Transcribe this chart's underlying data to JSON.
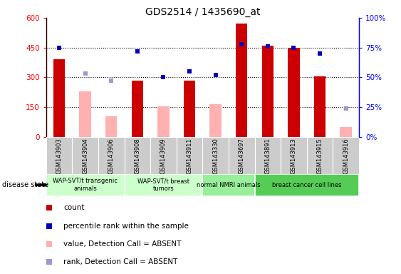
{
  "title": "GDS2514 / 1435690_at",
  "samples": [
    "GSM143903",
    "GSM143904",
    "GSM143906",
    "GSM143908",
    "GSM143909",
    "GSM143911",
    "GSM143330",
    "GSM143697",
    "GSM143891",
    "GSM143913",
    "GSM143915",
    "GSM143916"
  ],
  "red_bars": {
    "GSM143903": 390,
    "GSM143908": 285,
    "GSM143911": 283,
    "GSM143697": 570,
    "GSM143891": 460,
    "GSM143913": 450,
    "GSM143915": 305
  },
  "pink_bars": {
    "GSM143904": 230,
    "GSM143906": 105,
    "GSM143909": 155,
    "GSM143330": 165,
    "GSM143916": 50
  },
  "blue_squares": {
    "GSM143903": 75,
    "GSM143908": 72,
    "GSM143909": 50,
    "GSM143911": 55,
    "GSM143330": 52,
    "GSM143697": 78,
    "GSM143891": 76,
    "GSM143913": 75,
    "GSM143915": 70
  },
  "blue_squares_absent": {
    "GSM143904": 53,
    "GSM143906": 47,
    "GSM143916": 24
  },
  "groups": [
    {
      "label": "WAP-SVT/t transgenic\nanimals",
      "samples": [
        "GSM143903",
        "GSM143904",
        "GSM143906"
      ],
      "color": "#ccffcc"
    },
    {
      "label": "WAP-SVT/t breast\ntumors",
      "samples": [
        "GSM143908",
        "GSM143909",
        "GSM143911"
      ],
      "color": "#ccffcc"
    },
    {
      "label": "normal NMRI animals",
      "samples": [
        "GSM143330",
        "GSM143697"
      ],
      "color": "#99ee99"
    },
    {
      "label": "breast cancer cell lines",
      "samples": [
        "GSM143891",
        "GSM143913",
        "GSM143915",
        "GSM143916"
      ],
      "color": "#66dd66"
    }
  ],
  "ylim_left": [
    0,
    600
  ],
  "ylim_right": [
    0,
    100
  ],
  "yticks_left": [
    0,
    150,
    300,
    450,
    600
  ],
  "ytick_labels_left": [
    "0",
    "150",
    "300",
    "450",
    "600"
  ],
  "yticks_right": [
    0,
    25,
    50,
    75,
    100
  ],
  "ytick_labels_right": [
    "0%",
    "25%",
    "50%",
    "75%",
    "100%"
  ],
  "hgrid_vals": [
    150,
    300,
    450
  ],
  "colors": {
    "red_bar": "#cc0000",
    "pink_bar": "#ffb0b0",
    "blue_square": "#0000bb",
    "lightblue_square": "#9999cc",
    "bg_xtick": "#cccccc",
    "group1": "#ccffcc",
    "group2": "#99ee99",
    "group3": "#55cc55"
  },
  "legend_items": [
    {
      "color": "#cc0000",
      "marker": "s",
      "label": "count"
    },
    {
      "color": "#0000bb",
      "marker": "s",
      "label": "percentile rank within the sample"
    },
    {
      "color": "#ffb0b0",
      "marker": "s",
      "label": "value, Detection Call = ABSENT"
    },
    {
      "color": "#9999cc",
      "marker": "s",
      "label": "rank, Detection Call = ABSENT"
    }
  ]
}
